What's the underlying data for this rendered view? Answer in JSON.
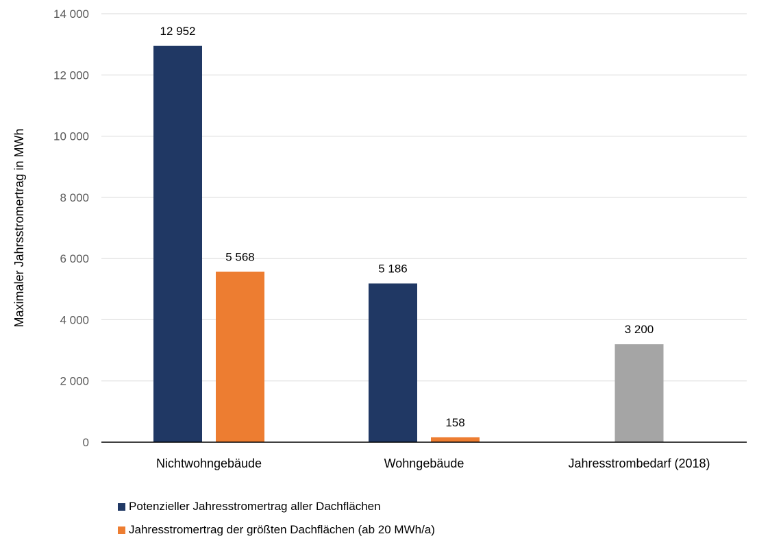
{
  "chart_data": {
    "type": "bar",
    "categories": [
      "Nichtwohngebäude",
      "Wohngebäude",
      "Jahresstrombedarf (2018)"
    ],
    "series": [
      {
        "name": "Potenzieller Jahresstromertrag aller Dachflächen",
        "color": "#203864",
        "values": [
          12952,
          5186,
          null
        ],
        "labels": [
          "12 952",
          "5 186",
          ""
        ]
      },
      {
        "name": "Jahresstromertrag der größten Dachflächen (ab 20 MWh/a)",
        "color": "#ED7D31",
        "values": [
          5568,
          158,
          null
        ],
        "labels": [
          "5 568",
          "158",
          ""
        ]
      },
      {
        "name": "",
        "color": "#A5A5A5",
        "values": [
          null,
          null,
          3200
        ],
        "labels": [
          "",
          "",
          "3 200"
        ]
      }
    ],
    "ylabel": "Maximaler Jahrsstromertrag in MWh",
    "xlabel": "",
    "ylim": [
      0,
      14000
    ],
    "yticks": [
      0,
      2000,
      4000,
      6000,
      8000,
      10000,
      12000,
      14000
    ],
    "ytick_labels": [
      "0",
      "2 000",
      "4 000",
      "6 000",
      "8 000",
      "10 000",
      "12 000",
      "14 000"
    ],
    "grid": true,
    "legend_position": "bottom-left"
  }
}
